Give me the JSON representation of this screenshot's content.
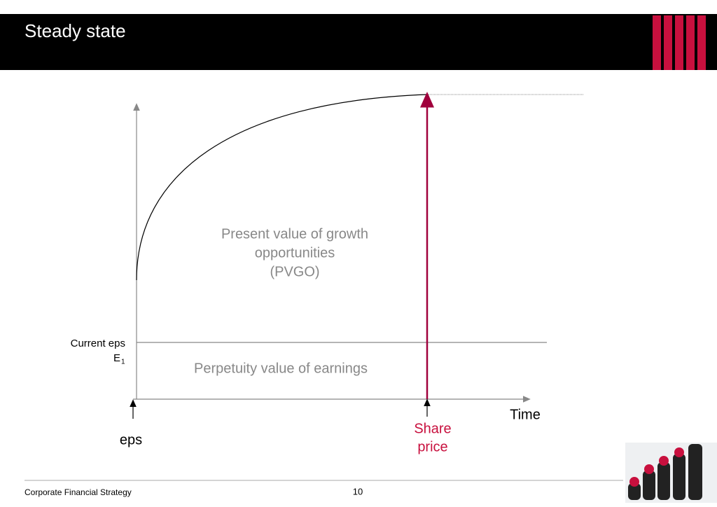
{
  "header": {
    "title": "Steady state"
  },
  "diagram": {
    "pvgo_label": [
      "Present value of growth",
      "opportunities",
      "(PVGO)"
    ],
    "current_eps": "Current eps",
    "e_symbol": "E",
    "e_subscript": "1",
    "perpetuity_label": "Perpetuity value of earnings",
    "x_axis_label": "Time",
    "share_price_label": [
      "Share",
      "price"
    ],
    "eps_label": "eps"
  },
  "footer": {
    "left": "Corporate Financial Strategy",
    "page": "10"
  }
}
